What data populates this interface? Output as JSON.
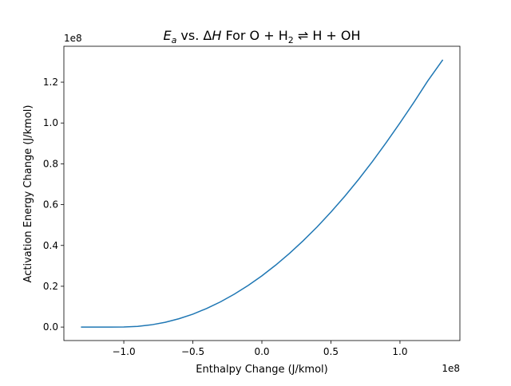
{
  "chart_data": {
    "type": "line",
    "title_parts": {
      "ea": "E",
      "ea_sub": "a",
      "vs": " vs. Δ",
      "h": "H",
      "rest": " For O + H",
      "h2_sub": "2",
      "tail": " ⇌ H + OH"
    },
    "xlabel": "Enthalpy Change (J/kmol)",
    "ylabel": "Activation Energy Change (J/kmol)",
    "x_offset_label": "1e8",
    "y_offset_label": "1e8",
    "xlim": [
      -1.434,
      1.434
    ],
    "ylim": [
      -0.066,
      1.376
    ],
    "x_ticks": [
      -1.0,
      -0.5,
      0.0,
      0.5,
      1.0
    ],
    "x_tick_labels": [
      "−1.0",
      "−0.5",
      "0.0",
      "0.5",
      "1.0"
    ],
    "y_ticks": [
      0.0,
      0.2,
      0.4,
      0.6,
      0.8,
      1.0,
      1.2
    ],
    "y_tick_labels": [
      "0.0",
      "0.2",
      "0.4",
      "0.6",
      "0.8",
      "1.0",
      "1.2"
    ],
    "grid": false,
    "series": [
      {
        "color": "#1f77b4",
        "x": [
          -1.31,
          -1.2,
          -1.1,
          -1.0,
          -0.9,
          -0.8,
          -0.7,
          -0.6,
          -0.5,
          -0.4,
          -0.3,
          -0.2,
          -0.1,
          0.0,
          0.1,
          0.2,
          0.3,
          0.4,
          0.5,
          0.6,
          0.7,
          0.8,
          0.9,
          1.0,
          1.1,
          1.2,
          1.31
        ],
        "y": [
          0,
          0,
          0,
          0.0005,
          0.0035,
          0.011,
          0.0235,
          0.041,
          0.0635,
          0.091,
          0.1235,
          0.161,
          0.2035,
          0.251,
          0.3035,
          0.361,
          0.4235,
          0.491,
          0.5635,
          0.641,
          0.7235,
          0.811,
          0.9035,
          1.0,
          1.1,
          1.205,
          1.31
        ]
      }
    ]
  }
}
